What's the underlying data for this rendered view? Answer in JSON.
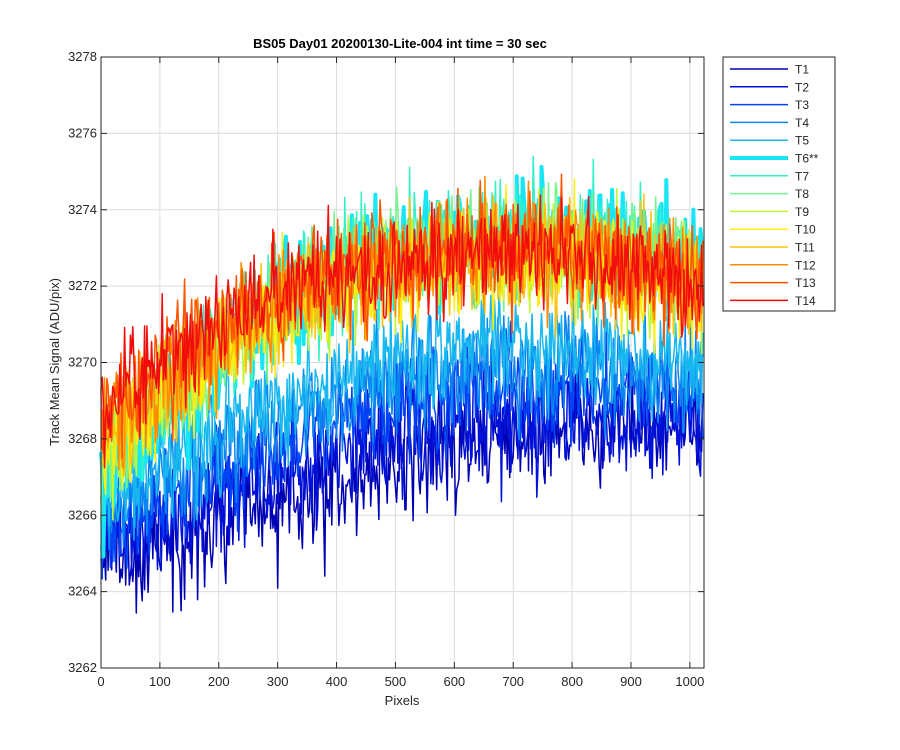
{
  "chart_data": {
    "type": "line",
    "title": "BS05 Day01 20200130-Lite-004 int time = 30 sec",
    "xlabel": "Pixels",
    "ylabel": "Track Mean Signal (ADU/pix)",
    "xlim": [
      0,
      1024
    ],
    "ylim": [
      3262,
      3278
    ],
    "xticks": [
      0,
      100,
      200,
      300,
      400,
      500,
      600,
      700,
      800,
      900,
      1000
    ],
    "yticks": [
      3262,
      3264,
      3266,
      3268,
      3270,
      3272,
      3274,
      3276,
      3278
    ],
    "grid": true,
    "legend_position": "outside-right-top",
    "series": [
      {
        "name": "T1",
        "color": "#0000b3",
        "width": 1.5,
        "profile": [
          [
            0,
            3264.8
          ],
          [
            100,
            3265.2
          ],
          [
            200,
            3265.7
          ],
          [
            300,
            3266.3
          ],
          [
            400,
            3266.8
          ],
          [
            500,
            3267.4
          ],
          [
            600,
            3267.8
          ],
          [
            700,
            3268.1
          ],
          [
            800,
            3268.3
          ],
          [
            900,
            3268.4
          ],
          [
            1024,
            3268.4
          ]
        ],
        "noise": 1.0
      },
      {
        "name": "T2",
        "color": "#0011d9",
        "width": 1.5,
        "profile": [
          [
            0,
            3265.2
          ],
          [
            100,
            3265.8
          ],
          [
            200,
            3266.4
          ],
          [
            300,
            3267.0
          ],
          [
            400,
            3267.6
          ],
          [
            500,
            3268.0
          ],
          [
            600,
            3268.3
          ],
          [
            700,
            3268.5
          ],
          [
            800,
            3268.6
          ],
          [
            900,
            3268.6
          ],
          [
            1024,
            3268.5
          ]
        ],
        "noise": 1.0
      },
      {
        "name": "T3",
        "color": "#0045f5",
        "width": 1.5,
        "profile": [
          [
            0,
            3265.6
          ],
          [
            100,
            3266.4
          ],
          [
            200,
            3267.1
          ],
          [
            300,
            3267.8
          ],
          [
            400,
            3268.4
          ],
          [
            500,
            3268.9
          ],
          [
            600,
            3269.2
          ],
          [
            700,
            3269.3
          ],
          [
            800,
            3269.3
          ],
          [
            900,
            3269.2
          ],
          [
            1024,
            3269.0
          ]
        ],
        "noise": 0.95
      },
      {
        "name": "T4",
        "color": "#0a86f0",
        "width": 1.5,
        "profile": [
          [
            0,
            3266.0
          ],
          [
            100,
            3266.9
          ],
          [
            200,
            3267.7
          ],
          [
            300,
            3268.4
          ],
          [
            400,
            3269.0
          ],
          [
            500,
            3269.5
          ],
          [
            600,
            3269.8
          ],
          [
            700,
            3269.9
          ],
          [
            800,
            3269.9
          ],
          [
            900,
            3269.7
          ],
          [
            1024,
            3269.5
          ]
        ],
        "noise": 0.95
      },
      {
        "name": "T5",
        "color": "#17b8f0",
        "width": 1.5,
        "profile": [
          [
            0,
            3266.3
          ],
          [
            100,
            3267.3
          ],
          [
            200,
            3268.2
          ],
          [
            300,
            3269.0
          ],
          [
            400,
            3269.6
          ],
          [
            500,
            3270.1
          ],
          [
            600,
            3270.4
          ],
          [
            700,
            3270.5
          ],
          [
            800,
            3270.4
          ],
          [
            900,
            3270.2
          ],
          [
            1024,
            3270.0
          ]
        ],
        "noise": 0.95
      },
      {
        "name": "T6**",
        "color": "#19e6f5",
        "width": 4,
        "profile": [
          [
            0,
            3266.8
          ],
          [
            100,
            3268.6
          ],
          [
            200,
            3270.2
          ],
          [
            300,
            3271.4
          ],
          [
            400,
            3272.2
          ],
          [
            500,
            3272.8
          ],
          [
            600,
            3273.1
          ],
          [
            700,
            3273.3
          ],
          [
            800,
            3273.3
          ],
          [
            900,
            3273.0
          ],
          [
            1024,
            3272.5
          ]
        ],
        "noise": 1.0
      },
      {
        "name": "T7",
        "color": "#33f0c8",
        "width": 1.5,
        "profile": [
          [
            0,
            3267.0
          ],
          [
            100,
            3268.8
          ],
          [
            200,
            3270.3
          ],
          [
            300,
            3271.5
          ],
          [
            400,
            3272.3
          ],
          [
            500,
            3272.9
          ],
          [
            600,
            3273.2
          ],
          [
            700,
            3273.4
          ],
          [
            800,
            3273.4
          ],
          [
            900,
            3273.1
          ],
          [
            1024,
            3272.6
          ]
        ],
        "noise": 1.0
      },
      {
        "name": "T8",
        "color": "#73f58c",
        "width": 1.5,
        "profile": [
          [
            0,
            3267.2
          ],
          [
            100,
            3268.9
          ],
          [
            200,
            3270.4
          ],
          [
            300,
            3271.5
          ],
          [
            400,
            3272.3
          ],
          [
            500,
            3272.8
          ],
          [
            600,
            3273.1
          ],
          [
            700,
            3273.2
          ],
          [
            800,
            3273.2
          ],
          [
            900,
            3272.9
          ],
          [
            1024,
            3272.4
          ]
        ],
        "noise": 1.0
      },
      {
        "name": "T9",
        "color": "#c2f532",
        "width": 1.5,
        "profile": [
          [
            0,
            3267.4
          ],
          [
            100,
            3269.0
          ],
          [
            200,
            3270.3
          ],
          [
            300,
            3271.3
          ],
          [
            400,
            3272.0
          ],
          [
            500,
            3272.5
          ],
          [
            600,
            3272.8
          ],
          [
            700,
            3272.9
          ],
          [
            800,
            3272.9
          ],
          [
            900,
            3272.6
          ],
          [
            1024,
            3272.1
          ]
        ],
        "noise": 1.0
      },
      {
        "name": "T10",
        "color": "#ffee0f",
        "width": 1.5,
        "profile": [
          [
            0,
            3267.6
          ],
          [
            100,
            3269.1
          ],
          [
            200,
            3270.3
          ],
          [
            300,
            3271.2
          ],
          [
            400,
            3271.9
          ],
          [
            500,
            3272.3
          ],
          [
            600,
            3272.6
          ],
          [
            700,
            3272.7
          ],
          [
            800,
            3272.7
          ],
          [
            900,
            3272.4
          ],
          [
            1024,
            3271.9
          ]
        ],
        "noise": 1.0
      },
      {
        "name": "T11",
        "color": "#ffc20a",
        "width": 1.5,
        "profile": [
          [
            0,
            3267.9
          ],
          [
            100,
            3269.3
          ],
          [
            200,
            3270.4
          ],
          [
            300,
            3271.3
          ],
          [
            400,
            3272.0
          ],
          [
            500,
            3272.4
          ],
          [
            600,
            3272.7
          ],
          [
            700,
            3272.8
          ],
          [
            800,
            3272.7
          ],
          [
            900,
            3272.4
          ],
          [
            1024,
            3271.9
          ]
        ],
        "noise": 1.0
      },
      {
        "name": "T12",
        "color": "#ff8c00",
        "width": 1.5,
        "profile": [
          [
            0,
            3268.2
          ],
          [
            100,
            3269.6
          ],
          [
            200,
            3270.7
          ],
          [
            300,
            3271.6
          ],
          [
            400,
            3272.2
          ],
          [
            500,
            3272.6
          ],
          [
            600,
            3272.9
          ],
          [
            700,
            3273.0
          ],
          [
            800,
            3272.9
          ],
          [
            900,
            3272.6
          ],
          [
            1024,
            3272.0
          ]
        ],
        "noise": 1.0
      },
      {
        "name": "T13",
        "color": "#ff5500",
        "width": 1.5,
        "profile": [
          [
            0,
            3268.5
          ],
          [
            100,
            3269.9
          ],
          [
            200,
            3270.9
          ],
          [
            300,
            3271.7
          ],
          [
            400,
            3272.3
          ],
          [
            500,
            3272.7
          ],
          [
            600,
            3272.9
          ],
          [
            700,
            3273.0
          ],
          [
            800,
            3272.9
          ],
          [
            900,
            3272.6
          ],
          [
            1024,
            3272.0
          ]
        ],
        "noise": 1.0
      },
      {
        "name": "T14",
        "color": "#f20d0d",
        "width": 1.5,
        "profile": [
          [
            0,
            3268.8
          ],
          [
            100,
            3270.1
          ],
          [
            200,
            3271.1
          ],
          [
            300,
            3271.8
          ],
          [
            400,
            3272.3
          ],
          [
            500,
            3272.6
          ],
          [
            600,
            3272.8
          ],
          [
            700,
            3272.9
          ],
          [
            800,
            3272.8
          ],
          [
            900,
            3272.5
          ],
          [
            1024,
            3271.9
          ]
        ],
        "noise": 0.95
      }
    ]
  }
}
